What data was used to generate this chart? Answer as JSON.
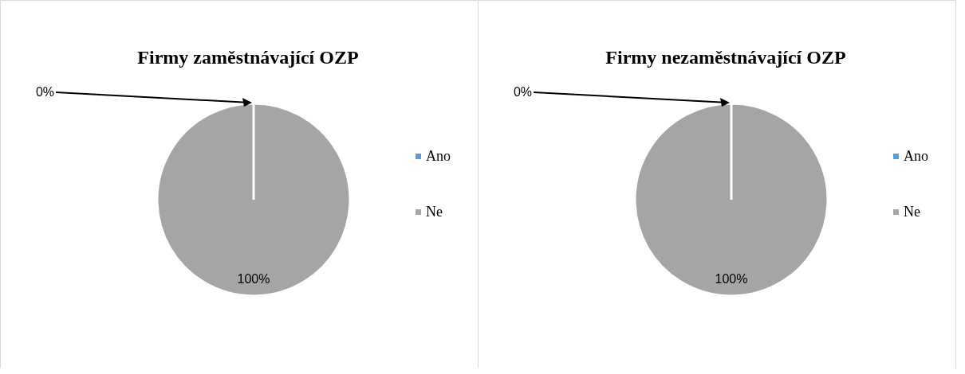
{
  "chart_data": [
    {
      "type": "pie",
      "title": "Firmy zaměstnávající OZP",
      "categories": [
        "Ano",
        "Ne"
      ],
      "values": [
        0,
        100
      ],
      "value_labels": [
        "0%",
        "100%"
      ],
      "colors": [
        "#5b9bd5",
        "#a5a5a5"
      ],
      "legend": "right"
    },
    {
      "type": "pie",
      "title": "Firmy nezaměstnávající OZP",
      "categories": [
        "Ano",
        "Ne"
      ],
      "values": [
        0,
        100
      ],
      "value_labels": [
        "0%",
        "100%"
      ],
      "colors": [
        "#5b9bd5",
        "#a5a5a5"
      ],
      "legend": "right"
    }
  ]
}
